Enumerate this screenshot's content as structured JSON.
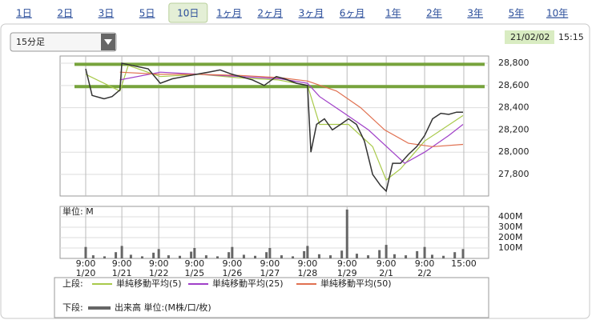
{
  "tabs": [
    "1日",
    "2日",
    "3日",
    "5日",
    "10日",
    "1ヶ月",
    "2ヶ月",
    "3ヶ月",
    "6ヶ月",
    "1年",
    "2年",
    "3年",
    "5年",
    "10年"
  ],
  "selected_tab": 4,
  "interval_select": "15分足",
  "timestamp": {
    "date": "21/02/02",
    "time": "15:15"
  },
  "legend": {
    "upper_label": "上段:",
    "lower_label": "下段:",
    "volume_label": "出来高 単位:(M株/口/枚)"
  },
  "chart_data": [
    {
      "type": "line",
      "xlim": [
        -0.68,
        10.7
      ],
      "xticks": [
        {
          "value": 0,
          "label": "9:00",
          "date": "1/20"
        },
        {
          "value": 0.96,
          "label": "9:00",
          "date": "1/21"
        },
        {
          "value": 1.94,
          "label": "9:00",
          "date": "1/22"
        },
        {
          "value": 2.89,
          "label": "9:00",
          "date": "1/25"
        },
        {
          "value": 3.89,
          "label": "9:00",
          "date": "1/26"
        },
        {
          "value": 4.89,
          "label": "9:00",
          "date": "1/27"
        },
        {
          "value": 5.89,
          "label": "9:00",
          "date": "1/28"
        },
        {
          "value": 6.94,
          "label": "9:00",
          "date": "1/29"
        },
        {
          "value": 7.98,
          "label": "9:00",
          "date": "2/1"
        },
        {
          "value": 9.0,
          "label": "9:00",
          "date": "2/2"
        },
        {
          "value": 10.04,
          "label": "15:00"
        }
      ],
      "ylim": [
        27606,
        28865
      ],
      "yticks": [
        {
          "value": 27800,
          "label": "27,800"
        },
        {
          "value": 28000,
          "label": "28,000"
        },
        {
          "value": 28200,
          "label": "28,200"
        },
        {
          "value": 28400,
          "label": "28,400"
        },
        {
          "value": 28600,
          "label": "28,600"
        },
        {
          "value": 28800,
          "label": "28,800"
        }
      ],
      "grid": true,
      "hlines": [
        {
          "value": 28790,
          "color": "#77a33c"
        },
        {
          "value": 28590,
          "color": "#77a33c"
        }
      ],
      "price": {
        "color": "#333333",
        "x": [
          0,
          0.17,
          0.49,
          0.7,
          0.91,
          0.96,
          1.23,
          1.66,
          1.98,
          2.3,
          2.62,
          2.94,
          3.26,
          3.57,
          3.89,
          4.11,
          4.43,
          4.74,
          5.06,
          5.28,
          5.6,
          5.89,
          5.98,
          6.13,
          6.34,
          6.55,
          6.77,
          6.98,
          7.19,
          7.4,
          7.62,
          7.83,
          7.98,
          8.15,
          8.36,
          8.57,
          8.79,
          9.0,
          9.21,
          9.43,
          9.64,
          9.85,
          10.02
        ],
        "values": [
          28750,
          28510,
          28480,
          28500,
          28560,
          28800,
          28780,
          28750,
          28620,
          28660,
          28680,
          28700,
          28720,
          28740,
          28700,
          28680,
          28650,
          28600,
          28680,
          28660,
          28620,
          28600,
          28000,
          28250,
          28300,
          28200,
          28250,
          28300,
          28250,
          28100,
          27800,
          27700,
          27650,
          27900,
          27900,
          27980,
          28050,
          28150,
          28300,
          28350,
          28340,
          28360,
          28360
        ]
      },
      "series": [
        {
          "name": "単純移動平均(5)",
          "color": "#a8c94a",
          "x": [
            0,
            0.91,
            1.13,
            1.98,
            3.04,
            4.04,
            5.11,
            5.89,
            6.21,
            6.98,
            7.62,
            7.98,
            8.36,
            9.0,
            10.02
          ],
          "values": [
            28700,
            28550,
            28780,
            28680,
            28700,
            28670,
            28650,
            28600,
            28250,
            28250,
            28050,
            27750,
            27850,
            28100,
            28330
          ]
        },
        {
          "name": "単純移動平均(25)",
          "color": "#a040c8",
          "x": [
            0.91,
            1.98,
            3.04,
            4.11,
            5.17,
            5.89,
            6.21,
            6.87,
            7.51,
            8.15,
            8.47,
            9.0,
            9.64,
            10.02
          ],
          "values": [
            28650,
            28720,
            28700,
            28680,
            28660,
            28620,
            28500,
            28350,
            28200,
            28000,
            27900,
            28000,
            28150,
            28250
          ]
        },
        {
          "name": "単純移動平均(50)",
          "color": "#e07050",
          "x": [
            0.91,
            1.98,
            3.04,
            4.11,
            5.17,
            5.89,
            6.66,
            7.3,
            7.94,
            8.57,
            9.21,
            10.02
          ],
          "values": [
            28720,
            28700,
            28700,
            28690,
            28670,
            28640,
            28550,
            28400,
            28200,
            28080,
            28050,
            28070
          ]
        }
      ]
    },
    {
      "type": "bar",
      "title": "単位: M",
      "color": "#666666",
      "xlim": [
        -0.68,
        10.7
      ],
      "ylim": [
        0,
        500
      ],
      "yticks": [
        {
          "value": 100,
          "label": "100M"
        },
        {
          "value": 200,
          "label": "200M"
        },
        {
          "value": 300,
          "label": "300M"
        },
        {
          "value": 400,
          "label": "400M"
        }
      ],
      "grid": true,
      "x": [
        0,
        0.2,
        0.5,
        0.8,
        0.96,
        1.2,
        1.5,
        1.8,
        1.94,
        2.2,
        2.5,
        2.8,
        2.89,
        3.2,
        3.5,
        3.8,
        3.89,
        4.2,
        4.5,
        4.8,
        4.89,
        5.2,
        5.5,
        5.8,
        5.89,
        6.2,
        6.5,
        6.8,
        6.94,
        7.2,
        7.5,
        7.8,
        7.98,
        8.2,
        8.5,
        8.8,
        9.0,
        9.2,
        9.5,
        9.8,
        10.02
      ],
      "values": [
        110,
        30,
        20,
        60,
        120,
        35,
        20,
        55,
        90,
        30,
        25,
        65,
        100,
        30,
        20,
        60,
        110,
        35,
        25,
        60,
        100,
        30,
        20,
        70,
        120,
        40,
        30,
        75,
        470,
        45,
        30,
        80,
        130,
        40,
        30,
        70,
        110,
        35,
        25,
        60,
        90
      ]
    }
  ]
}
